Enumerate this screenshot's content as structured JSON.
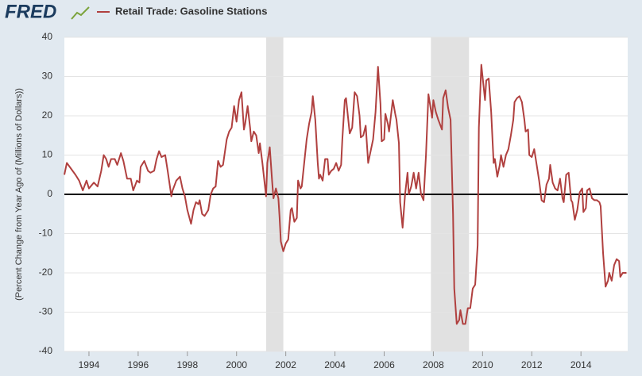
{
  "chart_data": {
    "type": "line",
    "brand": "FRED",
    "ylabel": "(Percent Change from Year Ago of (Millions of Dollars))",
    "xlim": [
      1993.0,
      2015.9
    ],
    "ylim": [
      -40,
      40
    ],
    "xticks": [
      1994,
      1996,
      1998,
      2000,
      2002,
      2004,
      2006,
      2008,
      2010,
      2012,
      2014
    ],
    "yticks": [
      -40,
      -30,
      -20,
      -10,
      0,
      10,
      20,
      30,
      40
    ],
    "grid": true,
    "recessions": [
      [
        2001.2,
        2001.9
      ],
      [
        2007.9,
        2009.45
      ]
    ],
    "x": [
      1993.0,
      1993.1,
      1993.45,
      1993.6,
      1993.75,
      1993.9,
      1994.0,
      1994.2,
      1994.35,
      1994.5,
      1994.6,
      1994.7,
      1994.8,
      1994.9,
      1995.05,
      1995.15,
      1995.3,
      1995.4,
      1995.55,
      1995.7,
      1995.8,
      1995.95,
      1996.05,
      1996.1,
      1996.25,
      1996.4,
      1996.5,
      1996.65,
      1996.75,
      1996.85,
      1996.95,
      1997.1,
      1997.2,
      1997.35,
      1997.4,
      1997.55,
      1997.7,
      1997.8,
      1997.9,
      1998.0,
      1998.15,
      1998.25,
      1998.35,
      1998.45,
      1998.5,
      1998.6,
      1998.7,
      1998.85,
      1998.95,
      1999.05,
      1999.15,
      1999.25,
      1999.35,
      1999.45,
      1999.6,
      1999.7,
      1999.8,
      1999.9,
      2000.0,
      2000.1,
      2000.2,
      2000.3,
      2000.35,
      2000.45,
      2000.55,
      2000.6,
      2000.7,
      2000.8,
      2000.9,
      2000.95,
      2001.05,
      2001.2,
      2001.25,
      2001.35,
      2001.45,
      2001.5,
      2001.6,
      2001.7,
      2001.75,
      2001.8,
      2001.9,
      2002.0,
      2002.1,
      2002.2,
      2002.25,
      2002.35,
      2002.45,
      2002.5,
      2002.6,
      2002.65,
      2002.75,
      2002.85,
      2002.95,
      2003.05,
      2003.1,
      2003.2,
      2003.3,
      2003.35,
      2003.4,
      2003.5,
      2003.6,
      2003.7,
      2003.75,
      2003.85,
      2003.95,
      2004.05,
      2004.15,
      2004.25,
      2004.3,
      2004.4,
      2004.45,
      2004.6,
      2004.7,
      2004.8,
      2004.9,
      2005.0,
      2005.05,
      2005.15,
      2005.25,
      2005.35,
      2005.45,
      2005.55,
      2005.65,
      2005.75,
      2005.85,
      2005.9,
      2006.0,
      2006.05,
      2006.15,
      2006.2,
      2006.35,
      2006.45,
      2006.5,
      2006.6,
      2006.65,
      2006.75,
      2006.85,
      2006.95,
      2007.0,
      2007.1,
      2007.2,
      2007.3,
      2007.4,
      2007.5,
      2007.6,
      2007.7,
      2007.8,
      2007.95,
      2008.0,
      2008.1,
      2008.2,
      2008.35,
      2008.4,
      2008.5,
      2008.6,
      2008.7,
      2008.8,
      2008.85,
      2008.95,
      2009.05,
      2009.1,
      2009.2,
      2009.3,
      2009.4,
      2009.5,
      2009.6,
      2009.7,
      2009.8,
      2009.85,
      2009.95,
      2010.0,
      2010.1,
      2010.15,
      2010.25,
      2010.35,
      2010.45,
      2010.5,
      2010.6,
      2010.7,
      2010.75,
      2010.85,
      2010.95,
      2011.05,
      2011.15,
      2011.25,
      2011.3,
      2011.4,
      2011.5,
      2011.6,
      2011.7,
      2011.75,
      2011.85,
      2011.9,
      2012.0,
      2012.1,
      2012.2,
      2012.3,
      2012.35,
      2012.4,
      2012.5,
      2012.6,
      2012.7,
      2012.75,
      2012.85,
      2012.95,
      2013.05,
      2013.15,
      2013.25,
      2013.3,
      2013.4,
      2013.5,
      2013.6,
      2013.65,
      2013.75,
      2013.85,
      2013.95,
      2014.05,
      2014.1,
      2014.2,
      2014.25,
      2014.35,
      2014.45,
      2014.55,
      2014.65,
      2014.75,
      2014.8,
      2014.9,
      2015.0,
      2015.1,
      2015.15,
      2015.25,
      2015.35,
      2015.45,
      2015.55,
      2015.6,
      2015.7,
      2015.85
    ],
    "series": [
      {
        "name": "Retail Trade: Gasoline Stations",
        "color": "#b0403f",
        "values": [
          5,
          8,
          5,
          3.5,
          1,
          3.5,
          1.5,
          3,
          2,
          6,
          10,
          9,
          7,
          9,
          9,
          7.5,
          10.5,
          8.5,
          4,
          4,
          1,
          3.5,
          3,
          7,
          8.5,
          6,
          5.5,
          6,
          9,
          11,
          9.5,
          10,
          6,
          -0.5,
          1,
          3.5,
          4.5,
          1.5,
          -0.5,
          -4,
          -7.5,
          -4,
          -2,
          -2.5,
          -1.5,
          -5,
          -5.5,
          -4,
          0,
          1.5,
          2,
          8.5,
          7,
          7.5,
          14,
          16,
          17,
          22.5,
          18.5,
          24,
          26,
          16.5,
          18,
          22.5,
          17,
          13.5,
          16,
          15,
          10.5,
          13,
          8,
          -0.5,
          8,
          12,
          3,
          -1,
          1.5,
          -1,
          -6,
          -12,
          -14.5,
          -12.5,
          -11.5,
          -4,
          -3.5,
          -7,
          -6,
          3.5,
          1.5,
          2,
          8,
          14,
          18,
          21,
          25,
          19,
          8,
          4,
          5,
          3.5,
          9,
          9,
          5,
          6,
          6.5,
          8,
          6,
          7.5,
          14,
          24,
          24.5,
          15.5,
          17,
          26,
          25,
          20,
          14.5,
          15,
          17.5,
          8,
          11,
          14,
          21,
          32.5,
          23,
          13.5,
          14,
          20.5,
          18,
          16,
          24,
          20.5,
          19,
          13,
          -2,
          -8.5,
          0,
          5.5,
          0,
          2,
          5.5,
          1.5,
          5.5,
          0,
          -1.5,
          10,
          25.5,
          19.5,
          24,
          21,
          19,
          16.5,
          24.5,
          26.5,
          22,
          19,
          -5,
          -24,
          -33,
          -32,
          -29.5,
          -33,
          -33,
          -29,
          -29,
          -24,
          -23,
          -13,
          17,
          33,
          30,
          24,
          29,
          29.5,
          21,
          8,
          9,
          4.5,
          7.5,
          10,
          7,
          10,
          11.5,
          15,
          19,
          23.5,
          24.5,
          25,
          23.5,
          19,
          16,
          16.5,
          10,
          9.5,
          11.5,
          7.5,
          3.5,
          1,
          -1.5,
          -2,
          2.5,
          4,
          7.5,
          3,
          1.5,
          1,
          4,
          -1,
          -2,
          5,
          5.5,
          -1.5,
          -2,
          -6.5,
          -4,
          0.5,
          1.5,
          -4.5,
          -3.5,
          1,
          1.5,
          -1,
          -1.5,
          -1.5,
          -2,
          -3,
          -15,
          -23.5,
          -22,
          -20,
          -22,
          -18,
          -16.5,
          -17,
          -21,
          -20,
          -20
        ]
      }
    ]
  }
}
